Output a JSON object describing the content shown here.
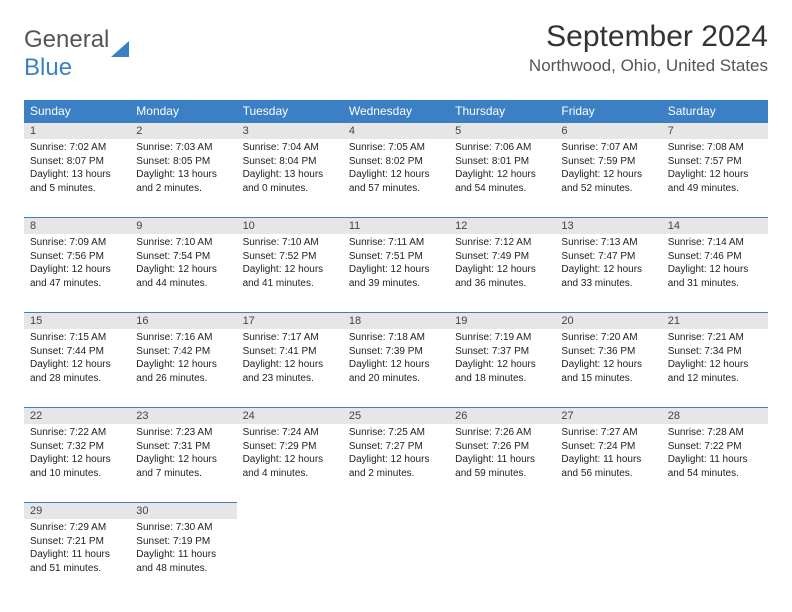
{
  "logo": {
    "text1": "General",
    "text2": "Blue"
  },
  "title": "September 2024",
  "location": "Northwood, Ohio, United States",
  "dayNames": [
    "Sunday",
    "Monday",
    "Tuesday",
    "Wednesday",
    "Thursday",
    "Friday",
    "Saturday"
  ],
  "colors": {
    "accent": "#3b7fc4",
    "headBg": "#e6e6e6"
  },
  "days": [
    {
      "n": 1,
      "sr": "7:02 AM",
      "ss": "8:07 PM",
      "d": "13 hours and 5 minutes."
    },
    {
      "n": 2,
      "sr": "7:03 AM",
      "ss": "8:05 PM",
      "d": "13 hours and 2 minutes."
    },
    {
      "n": 3,
      "sr": "7:04 AM",
      "ss": "8:04 PM",
      "d": "13 hours and 0 minutes."
    },
    {
      "n": 4,
      "sr": "7:05 AM",
      "ss": "8:02 PM",
      "d": "12 hours and 57 minutes."
    },
    {
      "n": 5,
      "sr": "7:06 AM",
      "ss": "8:01 PM",
      "d": "12 hours and 54 minutes."
    },
    {
      "n": 6,
      "sr": "7:07 AM",
      "ss": "7:59 PM",
      "d": "12 hours and 52 minutes."
    },
    {
      "n": 7,
      "sr": "7:08 AM",
      "ss": "7:57 PM",
      "d": "12 hours and 49 minutes."
    },
    {
      "n": 8,
      "sr": "7:09 AM",
      "ss": "7:56 PM",
      "d": "12 hours and 47 minutes."
    },
    {
      "n": 9,
      "sr": "7:10 AM",
      "ss": "7:54 PM",
      "d": "12 hours and 44 minutes."
    },
    {
      "n": 10,
      "sr": "7:10 AM",
      "ss": "7:52 PM",
      "d": "12 hours and 41 minutes."
    },
    {
      "n": 11,
      "sr": "7:11 AM",
      "ss": "7:51 PM",
      "d": "12 hours and 39 minutes."
    },
    {
      "n": 12,
      "sr": "7:12 AM",
      "ss": "7:49 PM",
      "d": "12 hours and 36 minutes."
    },
    {
      "n": 13,
      "sr": "7:13 AM",
      "ss": "7:47 PM",
      "d": "12 hours and 33 minutes."
    },
    {
      "n": 14,
      "sr": "7:14 AM",
      "ss": "7:46 PM",
      "d": "12 hours and 31 minutes."
    },
    {
      "n": 15,
      "sr": "7:15 AM",
      "ss": "7:44 PM",
      "d": "12 hours and 28 minutes."
    },
    {
      "n": 16,
      "sr": "7:16 AM",
      "ss": "7:42 PM",
      "d": "12 hours and 26 minutes."
    },
    {
      "n": 17,
      "sr": "7:17 AM",
      "ss": "7:41 PM",
      "d": "12 hours and 23 minutes."
    },
    {
      "n": 18,
      "sr": "7:18 AM",
      "ss": "7:39 PM",
      "d": "12 hours and 20 minutes."
    },
    {
      "n": 19,
      "sr": "7:19 AM",
      "ss": "7:37 PM",
      "d": "12 hours and 18 minutes."
    },
    {
      "n": 20,
      "sr": "7:20 AM",
      "ss": "7:36 PM",
      "d": "12 hours and 15 minutes."
    },
    {
      "n": 21,
      "sr": "7:21 AM",
      "ss": "7:34 PM",
      "d": "12 hours and 12 minutes."
    },
    {
      "n": 22,
      "sr": "7:22 AM",
      "ss": "7:32 PM",
      "d": "12 hours and 10 minutes."
    },
    {
      "n": 23,
      "sr": "7:23 AM",
      "ss": "7:31 PM",
      "d": "12 hours and 7 minutes."
    },
    {
      "n": 24,
      "sr": "7:24 AM",
      "ss": "7:29 PM",
      "d": "12 hours and 4 minutes."
    },
    {
      "n": 25,
      "sr": "7:25 AM",
      "ss": "7:27 PM",
      "d": "12 hours and 2 minutes."
    },
    {
      "n": 26,
      "sr": "7:26 AM",
      "ss": "7:26 PM",
      "d": "11 hours and 59 minutes."
    },
    {
      "n": 27,
      "sr": "7:27 AM",
      "ss": "7:24 PM",
      "d": "11 hours and 56 minutes."
    },
    {
      "n": 28,
      "sr": "7:28 AM",
      "ss": "7:22 PM",
      "d": "11 hours and 54 minutes."
    },
    {
      "n": 29,
      "sr": "7:29 AM",
      "ss": "7:21 PM",
      "d": "11 hours and 51 minutes."
    },
    {
      "n": 30,
      "sr": "7:30 AM",
      "ss": "7:19 PM",
      "d": "11 hours and 48 minutes."
    }
  ],
  "labels": {
    "sunrise": "Sunrise:",
    "sunset": "Sunset:",
    "daylight": "Daylight:"
  }
}
